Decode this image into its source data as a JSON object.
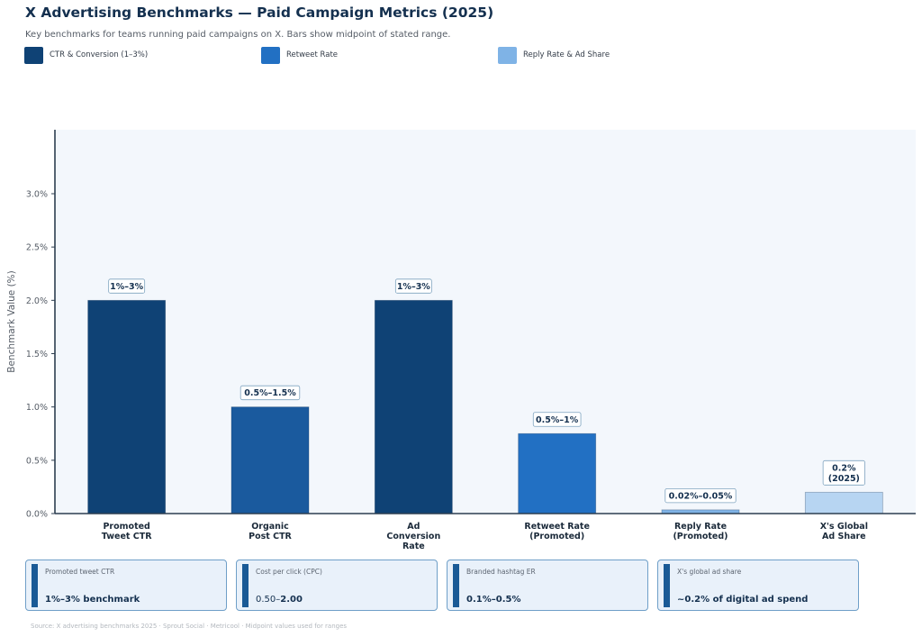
{
  "header": {
    "title": "X Advertising Benchmarks — Paid Campaign Metrics (2025)",
    "subtitle": "Key benchmarks for teams running paid campaigns on X. Bars show midpoint of stated range."
  },
  "legend": [
    {
      "label": "CTR & Conversion (1–3%)",
      "color": "#0f4275"
    },
    {
      "label": "Retweet Rate",
      "color": "#2270c3"
    },
    {
      "label": "Reply Rate & Ad Share",
      "color": "#7fb3e6"
    }
  ],
  "chart_data": {
    "type": "bar",
    "title": "X Advertising Benchmarks — Paid Campaign Metrics (2025)",
    "xlabel": "",
    "ylabel": "Benchmark Value (%)",
    "ylim": [
      0,
      3.6
    ],
    "yticks": [
      0.0,
      0.5,
      1.0,
      1.5,
      2.0,
      2.5,
      3.0
    ],
    "ytick_labels": [
      "0.0%",
      "0.5%",
      "1.0%",
      "1.5%",
      "2.0%",
      "2.5%",
      "3.0%"
    ],
    "grid": false,
    "legend_position": "top-left",
    "categories": [
      [
        "Promoted",
        "Tweet CTR"
      ],
      [
        "Organic",
        "Post CTR"
      ],
      [
        "Ad",
        "Conversion",
        "Rate"
      ],
      [
        "Retweet Rate",
        "(Promoted)"
      ],
      [
        "Reply Rate",
        "(Promoted)"
      ],
      [
        "X's Global",
        "Ad Share"
      ]
    ],
    "values": [
      2.0,
      1.0,
      2.0,
      0.75,
      0.035,
      0.2
    ],
    "colors": [
      "#0f4275",
      "#1a5a9e",
      "#0f4275",
      "#2270c3",
      "#7fb3e6",
      "#b7d5f2"
    ],
    "data_labels": [
      [
        "1%–3%"
      ],
      [
        "0.5%–1.5%"
      ],
      [
        "1%–3%"
      ],
      [
        "0.5%–1%"
      ],
      [
        "0.02%–0.05%"
      ],
      [
        "0.2%",
        "(2025)"
      ]
    ]
  },
  "cards": [
    {
      "label": "Promoted tweet CTR",
      "value": "1%–3% benchmark",
      "value_light": ""
    },
    {
      "label": "Cost per click (CPC)",
      "value_light": "0.50–",
      "value": "2.00"
    },
    {
      "label": "Branded hashtag ER",
      "value": "0.1%–0.5%",
      "value_light": ""
    },
    {
      "label": "X's global ad share",
      "value": "~0.2% of digital ad spend",
      "value_light": ""
    }
  ],
  "footer": {
    "source": "Source: X advertising benchmarks 2025 · Sprout Social · Metricool · Midpoint values used for ranges"
  }
}
